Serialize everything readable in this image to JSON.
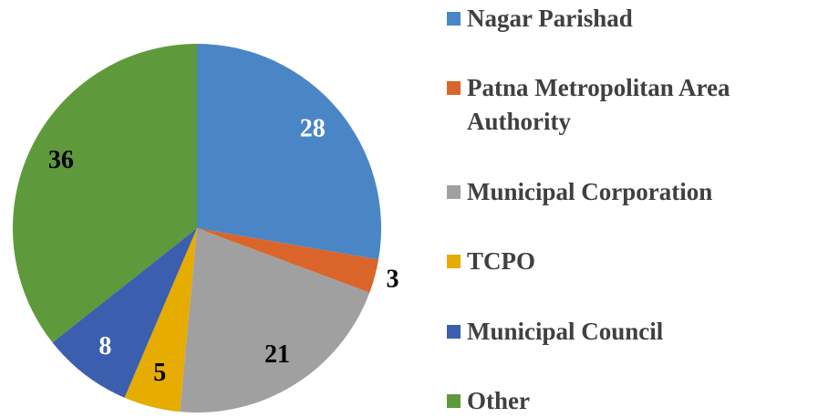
{
  "chart_data": {
    "type": "pie",
    "categories": [
      "Nagar Parishad",
      "Patna Metropolitan Area Authority",
      "Municipal Corporation",
      "TCPO",
      "Municipal Council",
      "Other"
    ],
    "values": [
      28,
      3,
      21,
      5,
      8,
      36
    ],
    "colors": [
      "#4a86c5",
      "#d9652b",
      "#a0a0a0",
      "#e6ac00",
      "#3b5fae",
      "#5e9a3b"
    ],
    "label_colors": [
      "#ffffff",
      "#000000",
      "#000000",
      "#000000",
      "#ffffff",
      "#000000"
    ],
    "legend": "right"
  }
}
